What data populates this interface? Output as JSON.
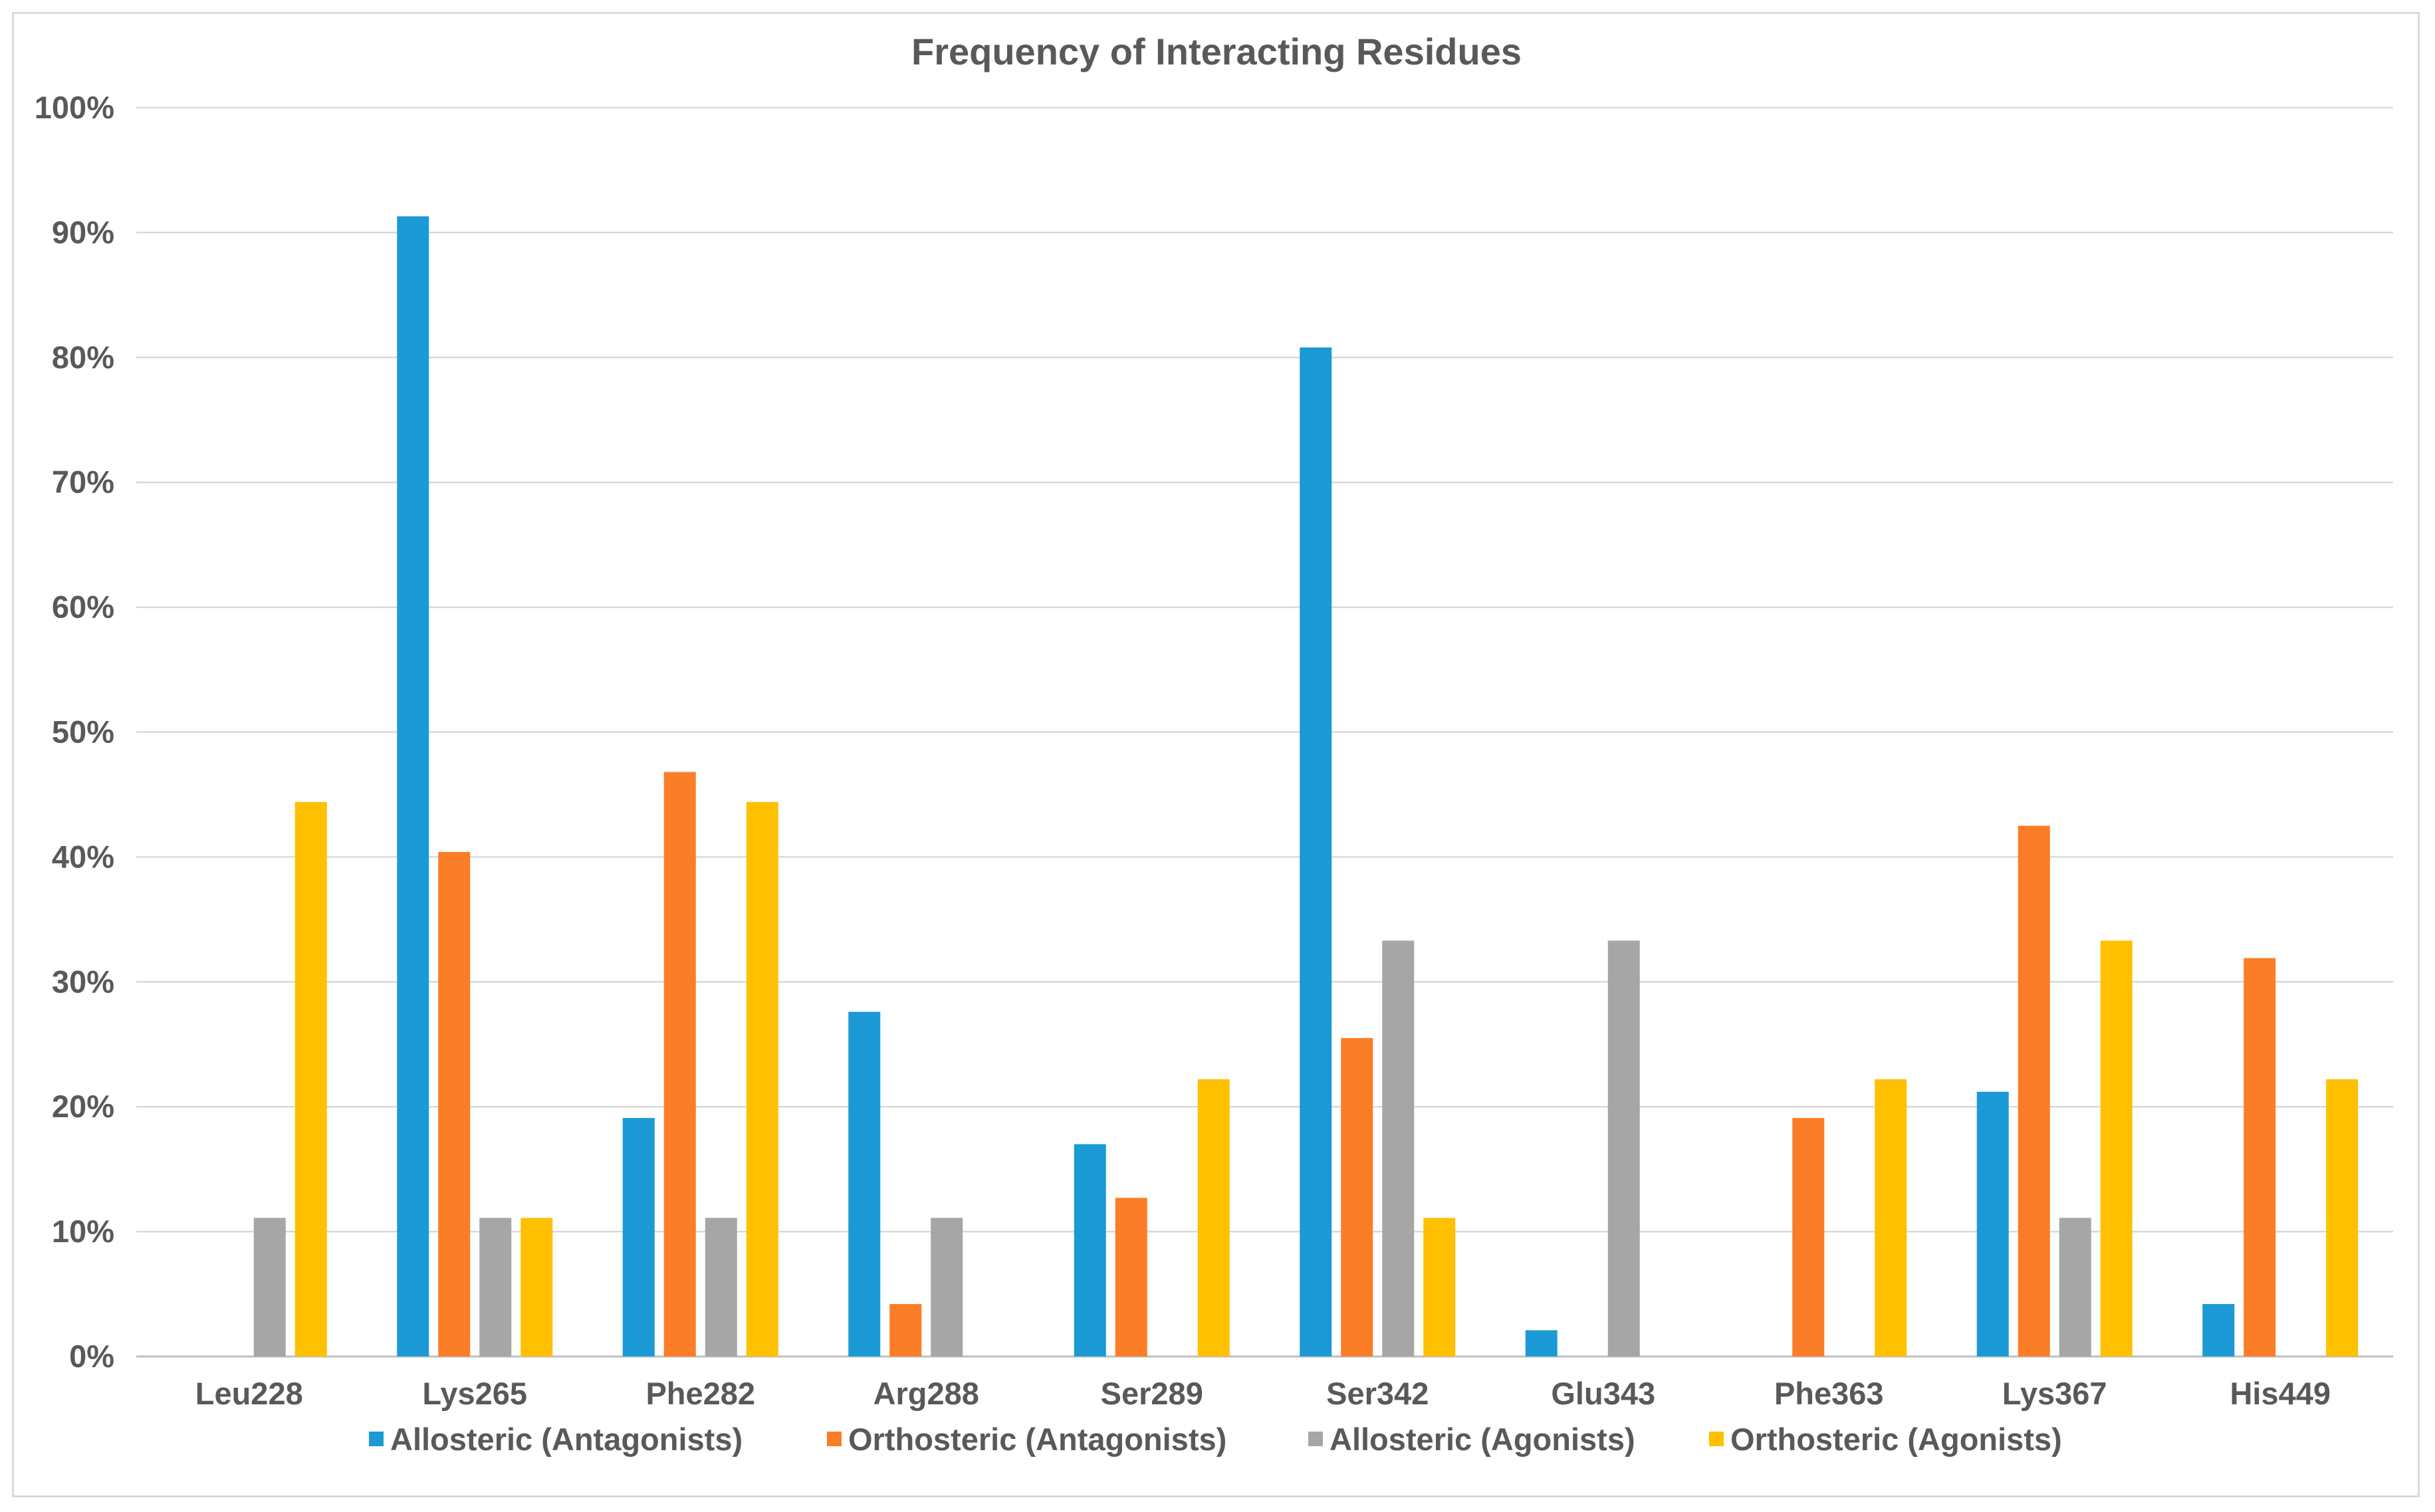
{
  "chart_data": {
    "type": "bar",
    "title": "Frequency of Interacting Residues",
    "xlabel": "",
    "ylabel": "",
    "ylim": [
      0,
      100
    ],
    "ytick_values": [
      0,
      10,
      20,
      30,
      40,
      50,
      60,
      70,
      80,
      90,
      100
    ],
    "ytick_labels": [
      "0%",
      "10%",
      "20%",
      "30%",
      "40%",
      "50%",
      "60%",
      "70%",
      "80%",
      "90%",
      "100%"
    ],
    "grid": true,
    "legend_position": "bottom",
    "categories": [
      "Leu228",
      "Lys265",
      "Phe282",
      "Arg288",
      "Ser289",
      "Ser342",
      "Glu343",
      "Phe363",
      "Lys367",
      "His449"
    ],
    "series": [
      {
        "name": "Allosteric (Antagonists)",
        "color": "#1b9ad6",
        "values": [
          0,
          91.3,
          19.1,
          27.6,
          17.0,
          80.8,
          2.1,
          0,
          21.2,
          4.2
        ]
      },
      {
        "name": "Orthosteric (Antagonists)",
        "color": "#fb7d27",
        "values": [
          0,
          40.4,
          46.8,
          4.2,
          12.7,
          25.5,
          0,
          19.1,
          42.5,
          31.9
        ]
      },
      {
        "name": "Allosteric (Agonists)",
        "color": "#a6a6a6",
        "values": [
          11.1,
          11.1,
          11.1,
          11.1,
          0,
          33.3,
          33.3,
          0,
          11.1,
          0
        ]
      },
      {
        "name": "Orthosteric (Agonists)",
        "color": "#ffc000",
        "values": [
          44.4,
          11.1,
          44.4,
          0,
          22.2,
          11.1,
          0,
          22.2,
          33.3,
          22.2
        ]
      }
    ]
  }
}
